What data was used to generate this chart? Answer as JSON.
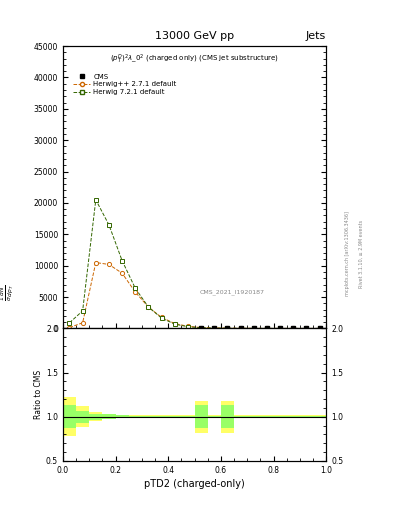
{
  "title": "13000 GeV pp",
  "title_right": "Jets",
  "subplot_title": "$(p_T^D)^2\\lambda\\_0^2$ (charged only) (CMS jet substructure)",
  "xlabel": "pTD2 (charged-only)",
  "ylabel_ratio": "Ratio to CMS",
  "annotation": "CMS_2021_I1920187",
  "right_label": "mcplots.cern.ch [arXiv:1306.3436]",
  "right_label2": "Rivet 3.1.10, ≥ 2.9M events",
  "herwig_pp_x": [
    0.025,
    0.075,
    0.125,
    0.175,
    0.225,
    0.275,
    0.325,
    0.375,
    0.425,
    0.475,
    0.525,
    0.575,
    0.625,
    0.675,
    0.725,
    0.775,
    0.825,
    0.875,
    0.925,
    0.975
  ],
  "herwig_pp_y": [
    150,
    900,
    10500,
    10200,
    8800,
    5800,
    3400,
    1750,
    780,
    340,
    140,
    75,
    45,
    28,
    18,
    12,
    8,
    6,
    4,
    2
  ],
  "herwig7_x": [
    0.025,
    0.075,
    0.125,
    0.175,
    0.225,
    0.275,
    0.325,
    0.375,
    0.425,
    0.475,
    0.525,
    0.575,
    0.625,
    0.675,
    0.725,
    0.775,
    0.825,
    0.875,
    0.925,
    0.975
  ],
  "herwig7_y": [
    900,
    2800,
    20500,
    16500,
    10800,
    6400,
    3400,
    1650,
    680,
    270,
    115,
    55,
    32,
    18,
    11,
    7,
    4,
    3,
    2,
    1
  ],
  "cms_x": [
    0.525,
    0.575,
    0.625,
    0.675,
    0.725,
    0.775,
    0.825,
    0.875,
    0.925,
    0.975
  ],
  "cms_y": [
    150,
    100,
    80,
    60,
    50,
    40,
    30,
    25,
    20,
    15
  ],
  "ylim_main": [
    0,
    45000
  ],
  "yticks_main": [
    0,
    5000,
    10000,
    15000,
    20000,
    25000,
    30000,
    35000,
    40000,
    45000
  ],
  "xlim": [
    0,
    1
  ],
  "ylim_ratio": [
    0.5,
    2.0
  ],
  "yticks_ratio": [
    0.5,
    1.0,
    1.5,
    2.0
  ],
  "herwig_pp_color": "#cc6600",
  "herwig7_color": "#336600",
  "cms_color": "#000000",
  "ratio_herwig_pp_band_color": "#ffff66",
  "ratio_herwig7_band_color": "#99ff66",
  "ratio_x_edges": [
    0.0,
    0.05,
    0.1,
    0.15,
    0.2,
    0.25,
    0.3,
    0.35,
    0.4,
    0.45,
    0.5,
    0.55,
    0.6,
    0.65,
    0.7,
    0.75,
    0.8,
    0.85,
    0.9,
    0.95,
    1.0
  ],
  "ratio_hpp_lo": [
    0.78,
    0.88,
    0.95,
    0.97,
    0.98,
    0.985,
    0.985,
    0.985,
    0.985,
    0.985,
    0.82,
    0.985,
    0.82,
    0.985,
    0.985,
    0.985,
    0.985,
    0.985,
    0.985,
    0.985
  ],
  "ratio_hpp_hi": [
    1.22,
    1.12,
    1.05,
    1.03,
    1.02,
    1.015,
    1.015,
    1.015,
    1.015,
    1.015,
    1.18,
    1.015,
    1.18,
    1.015,
    1.015,
    1.015,
    1.015,
    1.015,
    1.015,
    1.015
  ],
  "ratio_h7_lo": [
    0.87,
    0.93,
    0.965,
    0.975,
    0.985,
    0.988,
    0.988,
    0.988,
    0.988,
    0.988,
    0.87,
    0.988,
    0.87,
    0.988,
    0.988,
    0.988,
    0.988,
    0.988,
    0.988,
    0.988
  ],
  "ratio_h7_hi": [
    1.13,
    1.07,
    1.035,
    1.025,
    1.015,
    1.012,
    1.012,
    1.012,
    1.012,
    1.012,
    1.13,
    1.012,
    1.13,
    1.012,
    1.012,
    1.012,
    1.012,
    1.012,
    1.012,
    1.012
  ]
}
